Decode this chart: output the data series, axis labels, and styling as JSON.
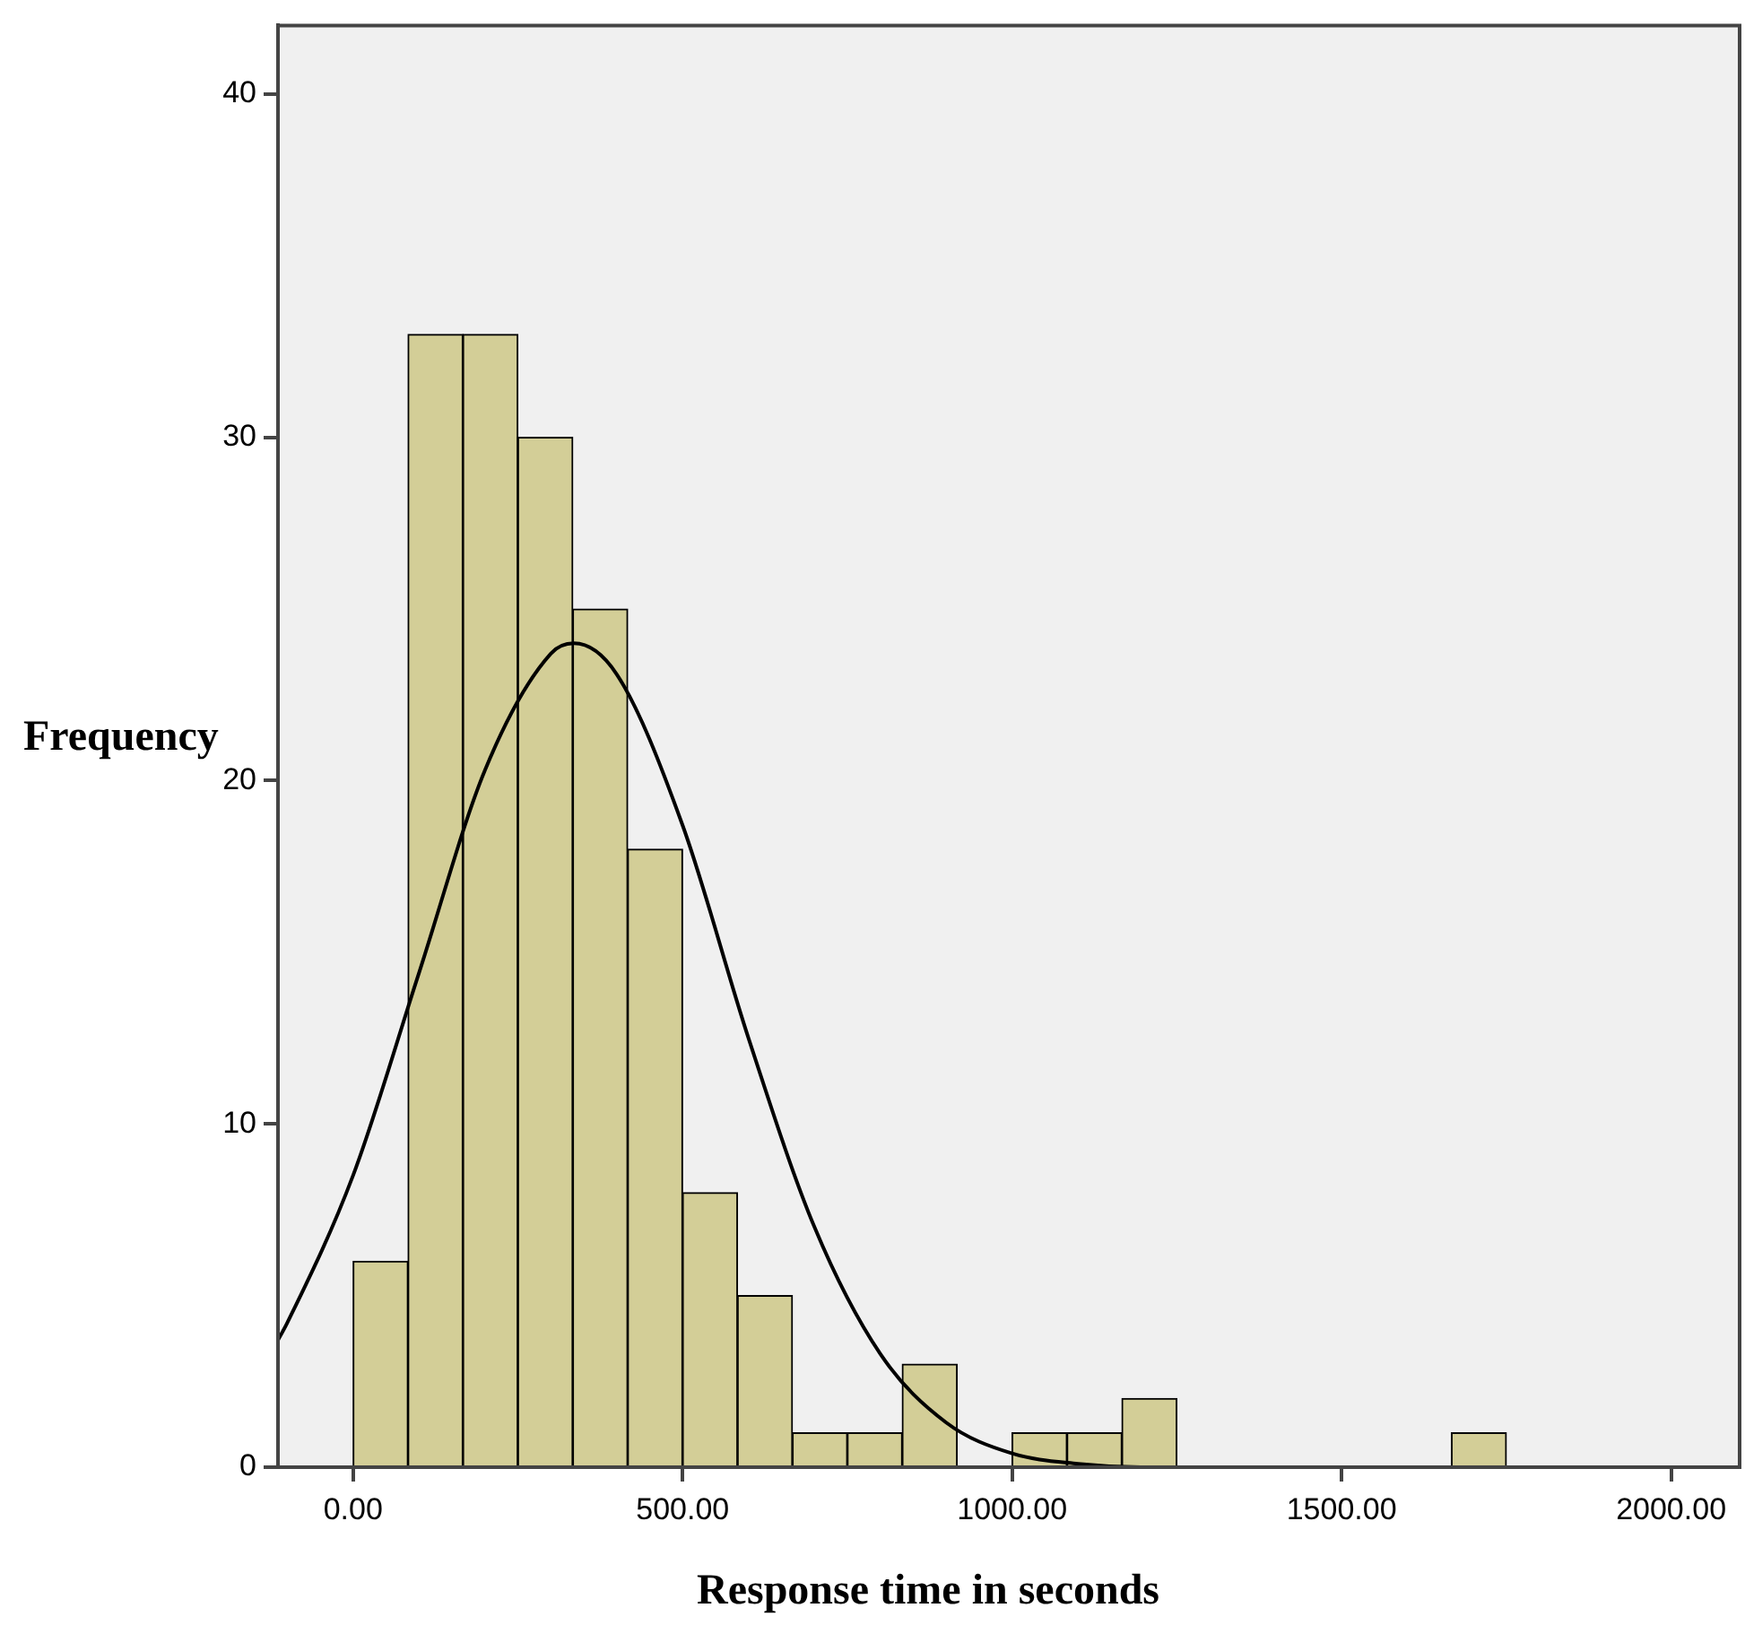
{
  "chart_data": {
    "type": "histogram",
    "xlabel": "Response time in seconds",
    "ylabel": "Frequency",
    "bins": [
      0,
      83.33,
      166.67,
      250,
      333.33,
      416.67,
      500,
      583.33,
      666.67,
      750,
      833.33,
      916.67,
      1000,
      1083.33,
      1166.67,
      1250,
      1333.33,
      1416.67,
      1500,
      1583.33,
      1666.67,
      1750
    ],
    "values": [
      6,
      33,
      33,
      30,
      25,
      18,
      8,
      5,
      1,
      1,
      3,
      0,
      1,
      1,
      2,
      0,
      0,
      0,
      0,
      0,
      1
    ],
    "color": "#d3ce97",
    "series": [
      {
        "type": "line",
        "color": "#000000",
        "x": [
          -114,
          -100,
          0,
          100,
          200,
          300,
          335,
          400,
          500,
          600,
          700,
          800,
          900,
          1000,
          1100,
          1200,
          1300,
          1500,
          2104
        ],
        "values": [
          3.7,
          4.2,
          8.5,
          14.4,
          20.3,
          23.7,
          24,
          23.1,
          18.7,
          12.5,
          7.0,
          3.3,
          1.3,
          0.4,
          0.1,
          0,
          0,
          0,
          0
        ]
      }
    ],
    "xlim": [
      -114,
      2104
    ],
    "xticks": [
      {
        "value": 0,
        "label": "0.00"
      },
      {
        "value": 500,
        "label": "500.00"
      },
      {
        "value": 1000,
        "label": "1000.00"
      },
      {
        "value": 1500,
        "label": "1500.00"
      },
      {
        "value": 2000,
        "label": "2000.00"
      }
    ],
    "ylim": [
      0,
      42
    ],
    "yticks": [
      0,
      10,
      20,
      30,
      40
    ],
    "grid": false,
    "legend": false,
    "marker": "none",
    "line_style": "solid"
  }
}
